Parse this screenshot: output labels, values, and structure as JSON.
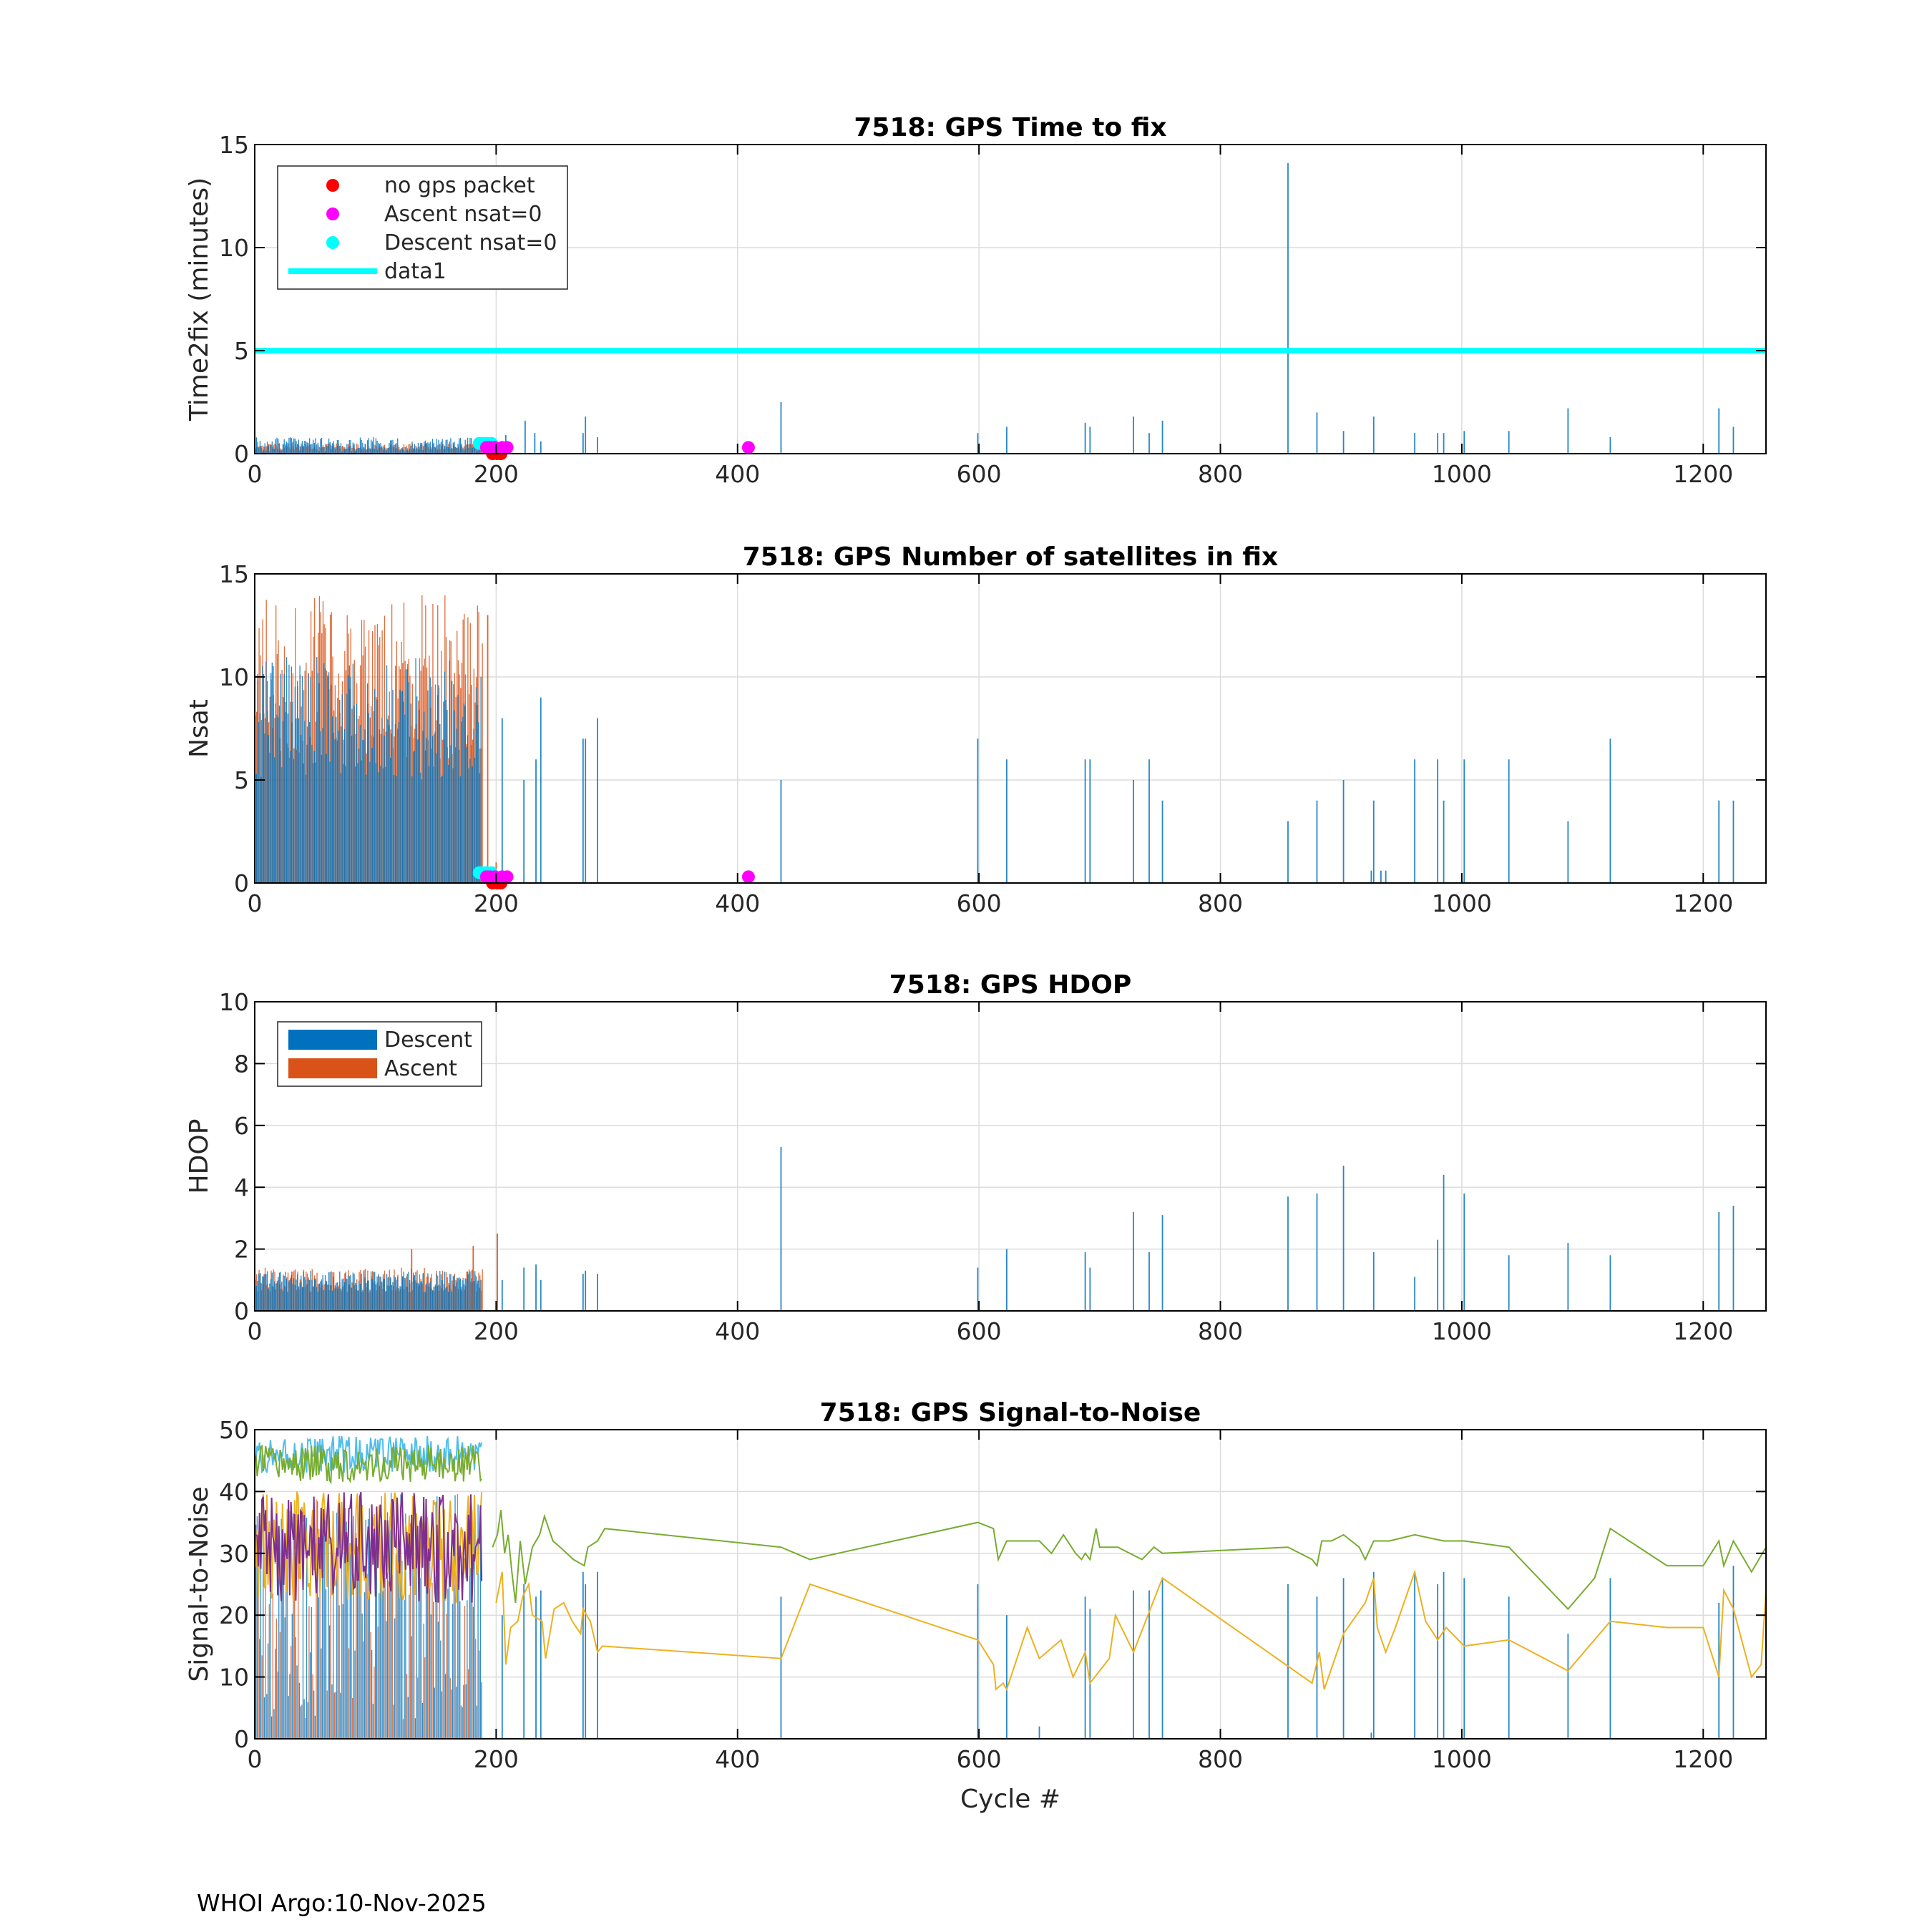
{
  "footer": "WHOI Argo:10-Nov-2025",
  "colors": {
    "descent": "#0072BD",
    "ascent": "#D95319",
    "no_gps": "#FF0000",
    "ascent_nsat0": "#FF00FF",
    "descent_nsat0": "#00FFFF",
    "threshold": "#00FFFF",
    "snr_green": "#77AC30",
    "snr_yellow": "#EDB120",
    "snr_purple": "#7E2F8E",
    "snr_cyan": "#4DBEEE"
  },
  "chart_data": [
    {
      "type": "bar",
      "title": "7518: GPS Time to fix",
      "xlabel": "",
      "ylabel": "Time2fix (minutes)",
      "xlim": [
        0,
        1252
      ],
      "ylim": [
        0,
        15
      ],
      "xticks": [
        "0",
        "200",
        "400",
        "600",
        "800",
        "1000",
        "1200"
      ],
      "yticks": [
        "0",
        "5",
        "10",
        "15"
      ],
      "grid": true,
      "legend_position": "top-left",
      "legend": [
        "no gps packet",
        "Ascent nsat=0",
        "Descent nsat=0",
        "data1"
      ],
      "threshold": 5,
      "early_range": [
        1,
        188
      ],
      "early_descent_range": [
        0.1,
        0.8
      ],
      "early_ascent_range": [
        0.2,
        0.5
      ],
      "descent_bars": [
        [
          208,
          0.9
        ],
        [
          224,
          1.6
        ],
        [
          232,
          1.0
        ],
        [
          237,
          0.6
        ],
        [
          272,
          1.0
        ],
        [
          274,
          1.8
        ],
        [
          284,
          0.8
        ],
        [
          436,
          2.5
        ],
        [
          599,
          1.0
        ],
        [
          623,
          1.3
        ],
        [
          688,
          1.5
        ],
        [
          692,
          1.3
        ],
        [
          728,
          1.8
        ],
        [
          741,
          1.0
        ],
        [
          752,
          1.6
        ],
        [
          856,
          14.1
        ],
        [
          880,
          2.0
        ],
        [
          902,
          1.1
        ],
        [
          927,
          1.8
        ],
        [
          961,
          1.0
        ],
        [
          980,
          1.0
        ],
        [
          985,
          1.0
        ],
        [
          1002,
          1.1
        ],
        [
          1039,
          1.1
        ],
        [
          1088,
          2.2
        ],
        [
          1123,
          0.8
        ],
        [
          1213,
          2.2
        ],
        [
          1225,
          1.3
        ]
      ],
      "no_gps_points": [
        [
          197,
          0
        ],
        [
          201,
          0
        ],
        [
          204,
          0
        ]
      ],
      "ascent_nsat0_points": [
        [
          192,
          0.3
        ],
        [
          195,
          0.3
        ],
        [
          199,
          0.3
        ],
        [
          205,
          0.3
        ],
        [
          209,
          0.3
        ],
        [
          409,
          0.3
        ]
      ],
      "descent_nsat0_points": [
        [
          186,
          0.5
        ],
        [
          189,
          0.5
        ],
        [
          192,
          0.5
        ],
        [
          196,
          0.5
        ]
      ]
    },
    {
      "type": "bar",
      "title": "7518: GPS Number of satellites in fix",
      "xlabel": "",
      "ylabel": "Nsat",
      "xlim": [
        0,
        1252
      ],
      "ylim": [
        0,
        15
      ],
      "xticks": [
        "0",
        "200",
        "400",
        "600",
        "800",
        "1000",
        "1200"
      ],
      "yticks": [
        "0",
        "5",
        "10",
        "15"
      ],
      "grid": true,
      "early_range": [
        1,
        188
      ],
      "early_descent_range": [
        5,
        11
      ],
      "early_ascent_range": [
        6,
        14
      ],
      "ascent_bars": [
        [
          193,
          13
        ],
        [
          200,
          1
        ]
      ],
      "descent_bars": [
        [
          205,
          8
        ],
        [
          223,
          5
        ],
        [
          233,
          6
        ],
        [
          237,
          9
        ],
        [
          272,
          7
        ],
        [
          274,
          7
        ],
        [
          284,
          8
        ],
        [
          436,
          5
        ],
        [
          599,
          7
        ],
        [
          623,
          6
        ],
        [
          688,
          6
        ],
        [
          692,
          6
        ],
        [
          728,
          5
        ],
        [
          741,
          6
        ],
        [
          752,
          4
        ],
        [
          856,
          3
        ],
        [
          880,
          4
        ],
        [
          902,
          5
        ],
        [
          925,
          0.6
        ],
        [
          927,
          4
        ],
        [
          933,
          0.6
        ],
        [
          937,
          0.6
        ],
        [
          961,
          6
        ],
        [
          980,
          6
        ],
        [
          985,
          4
        ],
        [
          1002,
          6
        ],
        [
          1039,
          6
        ],
        [
          1088,
          3
        ],
        [
          1123,
          7
        ],
        [
          1213,
          4
        ],
        [
          1225,
          4
        ]
      ],
      "no_gps_points": [
        [
          197,
          0
        ],
        [
          201,
          0
        ],
        [
          204,
          0
        ]
      ],
      "ascent_nsat0_points": [
        [
          192,
          0.3
        ],
        [
          195,
          0.3
        ],
        [
          199,
          0.3
        ],
        [
          205,
          0.3
        ],
        [
          209,
          0.3
        ],
        [
          409,
          0.3
        ]
      ],
      "descent_nsat0_points": [
        [
          186,
          0.5
        ],
        [
          189,
          0.5
        ],
        [
          192,
          0.5
        ],
        [
          196,
          0.5
        ]
      ]
    },
    {
      "type": "bar",
      "title": "7518: GPS HDOP",
      "xlabel": "",
      "ylabel": "HDOP",
      "xlim": [
        0,
        1252
      ],
      "ylim": [
        0,
        10
      ],
      "xticks": [
        "0",
        "200",
        "400",
        "600",
        "800",
        "1000",
        "1200"
      ],
      "yticks": [
        "0",
        "2",
        "4",
        "6",
        "8",
        "10"
      ],
      "grid": true,
      "legend_position": "top-left",
      "legend": [
        "Descent",
        "Ascent"
      ],
      "early_range": [
        1,
        188
      ],
      "early_descent_range": [
        0.6,
        1.3
      ],
      "early_ascent_range": [
        0.6,
        1.4
      ],
      "ascent_bars": [
        [
          130,
          2.0
        ],
        [
          181,
          2.1
        ],
        [
          201,
          2.5
        ]
      ],
      "descent_bars": [
        [
          205,
          1.0
        ],
        [
          223,
          1.4
        ],
        [
          233,
          1.5
        ],
        [
          237,
          1.0
        ],
        [
          272,
          1.2
        ],
        [
          274,
          1.3
        ],
        [
          284,
          1.2
        ],
        [
          436,
          5.3
        ],
        [
          599,
          1.4
        ],
        [
          623,
          2.0
        ],
        [
          688,
          1.9
        ],
        [
          692,
          1.4
        ],
        [
          728,
          3.2
        ],
        [
          741,
          1.9
        ],
        [
          752,
          3.1
        ],
        [
          856,
          3.7
        ],
        [
          880,
          3.8
        ],
        [
          902,
          4.7
        ],
        [
          927,
          1.9
        ],
        [
          961,
          1.1
        ],
        [
          980,
          2.3
        ],
        [
          985,
          4.4
        ],
        [
          1002,
          3.8
        ],
        [
          1039,
          1.8
        ],
        [
          1088,
          2.2
        ],
        [
          1123,
          1.8
        ],
        [
          1213,
          3.2
        ],
        [
          1225,
          3.4
        ]
      ]
    },
    {
      "type": "line",
      "title": "7518: GPS Signal-to-Noise",
      "xlabel": "Cycle #",
      "ylabel": "Signal-to-Noise",
      "xlim": [
        0,
        1252
      ],
      "ylim": [
        0,
        50
      ],
      "xticks": [
        "0",
        "200",
        "400",
        "600",
        "800",
        "1000",
        "1200"
      ],
      "yticks": [
        "0",
        "10",
        "20",
        "30",
        "40",
        "50"
      ],
      "grid": true,
      "early_range": [
        1,
        188
      ],
      "early_bar_range": [
        3,
        40
      ],
      "early_top_range": [
        40,
        49
      ],
      "early_mid_range": [
        22,
        40
      ],
      "descent_bars": [
        [
          205,
          20
        ],
        [
          223,
          25
        ],
        [
          233,
          23
        ],
        [
          237,
          24
        ],
        [
          272,
          27
        ],
        [
          274,
          25
        ],
        [
          284,
          27
        ],
        [
          436,
          23
        ],
        [
          599,
          25
        ],
        [
          623,
          20
        ],
        [
          650,
          2
        ],
        [
          688,
          23
        ],
        [
          692,
          21
        ],
        [
          728,
          24
        ],
        [
          741,
          24
        ],
        [
          752,
          26
        ],
        [
          856,
          25
        ],
        [
          880,
          23
        ],
        [
          902,
          26
        ],
        [
          925,
          1
        ],
        [
          927,
          27
        ],
        [
          961,
          27
        ],
        [
          980,
          25
        ],
        [
          985,
          27
        ],
        [
          1002,
          26
        ],
        [
          1039,
          23
        ],
        [
          1088,
          17
        ],
        [
          1123,
          26
        ],
        [
          1213,
          22
        ],
        [
          1225,
          28
        ]
      ],
      "series": [
        {
          "name": "snr-green",
          "color_key": "snr_green",
          "points": [
            [
              197,
              31
            ],
            [
              201,
              33
            ],
            [
              204,
              37
            ],
            [
              207,
              30
            ],
            [
              210,
              33
            ],
            [
              213,
              27
            ],
            [
              216,
              22
            ],
            [
              220,
              32
            ],
            [
              224,
              25
            ],
            [
              230,
              31
            ],
            [
              236,
              33
            ],
            [
              240,
              36
            ],
            [
              247,
              32
            ],
            [
              253,
              31
            ],
            [
              264,
              29
            ],
            [
              273,
              28
            ],
            [
              276,
              31
            ],
            [
              284,
              32
            ],
            [
              290,
              34
            ],
            [
              436,
              31
            ],
            [
              460,
              29
            ],
            [
              599,
              35
            ],
            [
              612,
              34
            ],
            [
              616,
              29
            ],
            [
              623,
              32
            ],
            [
              640,
              32
            ],
            [
              650,
              32
            ],
            [
              660,
              30
            ],
            [
              670,
              33
            ],
            [
              680,
              30
            ],
            [
              685,
              29
            ],
            [
              688,
              30
            ],
            [
              692,
              29
            ],
            [
              697,
              34
            ],
            [
              700,
              31
            ],
            [
              715,
              31
            ],
            [
              735,
              29
            ],
            [
              745,
              31
            ],
            [
              752,
              30
            ],
            [
              856,
              31
            ],
            [
              876,
              29
            ],
            [
              880,
              28
            ],
            [
              884,
              32
            ],
            [
              892,
              32
            ],
            [
              902,
              33
            ],
            [
              915,
              31
            ],
            [
              920,
              29
            ],
            [
              927,
              32
            ],
            [
              940,
              32
            ],
            [
              961,
              33
            ],
            [
              985,
              32
            ],
            [
              1002,
              32
            ],
            [
              1039,
              31
            ],
            [
              1088,
              21
            ],
            [
              1110,
              26
            ],
            [
              1123,
              34
            ],
            [
              1170,
              28
            ],
            [
              1200,
              28
            ],
            [
              1213,
              32
            ],
            [
              1217,
              28
            ],
            [
              1225,
              32
            ],
            [
              1240,
              27
            ],
            [
              1252,
              31
            ]
          ]
        },
        {
          "name": "snr-yellow",
          "color_key": "snr_yellow",
          "points": [
            [
              200,
              22
            ],
            [
              205,
              27
            ],
            [
              208,
              12
            ],
            [
              212,
              18
            ],
            [
              218,
              19
            ],
            [
              222,
              23
            ],
            [
              227,
              25
            ],
            [
              230,
              20
            ],
            [
              238,
              19
            ],
            [
              241,
              13
            ],
            [
              248,
              21
            ],
            [
              256,
              22
            ],
            [
              263,
              19
            ],
            [
              270,
              17
            ],
            [
              272,
              21
            ],
            [
              278,
              19
            ],
            [
              284,
              14
            ],
            [
              288,
              15
            ],
            [
              436,
              13
            ],
            [
              460,
              25
            ],
            [
              599,
              16
            ],
            [
              612,
              12
            ],
            [
              614,
              8
            ],
            [
              620,
              9
            ],
            [
              623,
              8
            ],
            [
              640,
              18
            ],
            [
              650,
              13
            ],
            [
              668,
              16
            ],
            [
              678,
              10
            ],
            [
              688,
              14
            ],
            [
              692,
              9
            ],
            [
              708,
              13
            ],
            [
              713,
              20
            ],
            [
              728,
              14
            ],
            [
              752,
              26
            ],
            [
              876,
              9
            ],
            [
              882,
              14
            ],
            [
              886,
              8
            ],
            [
              902,
              17
            ],
            [
              920,
              22
            ],
            [
              927,
              26
            ],
            [
              930,
              18
            ],
            [
              937,
              14
            ],
            [
              945,
              18
            ],
            [
              961,
              27
            ],
            [
              970,
              19
            ],
            [
              980,
              16
            ],
            [
              987,
              18
            ],
            [
              1002,
              15
            ],
            [
              1039,
              16
            ],
            [
              1088,
              11
            ],
            [
              1123,
              19
            ],
            [
              1170,
              18
            ],
            [
              1200,
              18
            ],
            [
              1213,
              10
            ],
            [
              1217,
              24
            ],
            [
              1225,
              21
            ],
            [
              1240,
              10
            ],
            [
              1248,
              12
            ],
            [
              1252,
              24
            ]
          ]
        }
      ]
    }
  ]
}
